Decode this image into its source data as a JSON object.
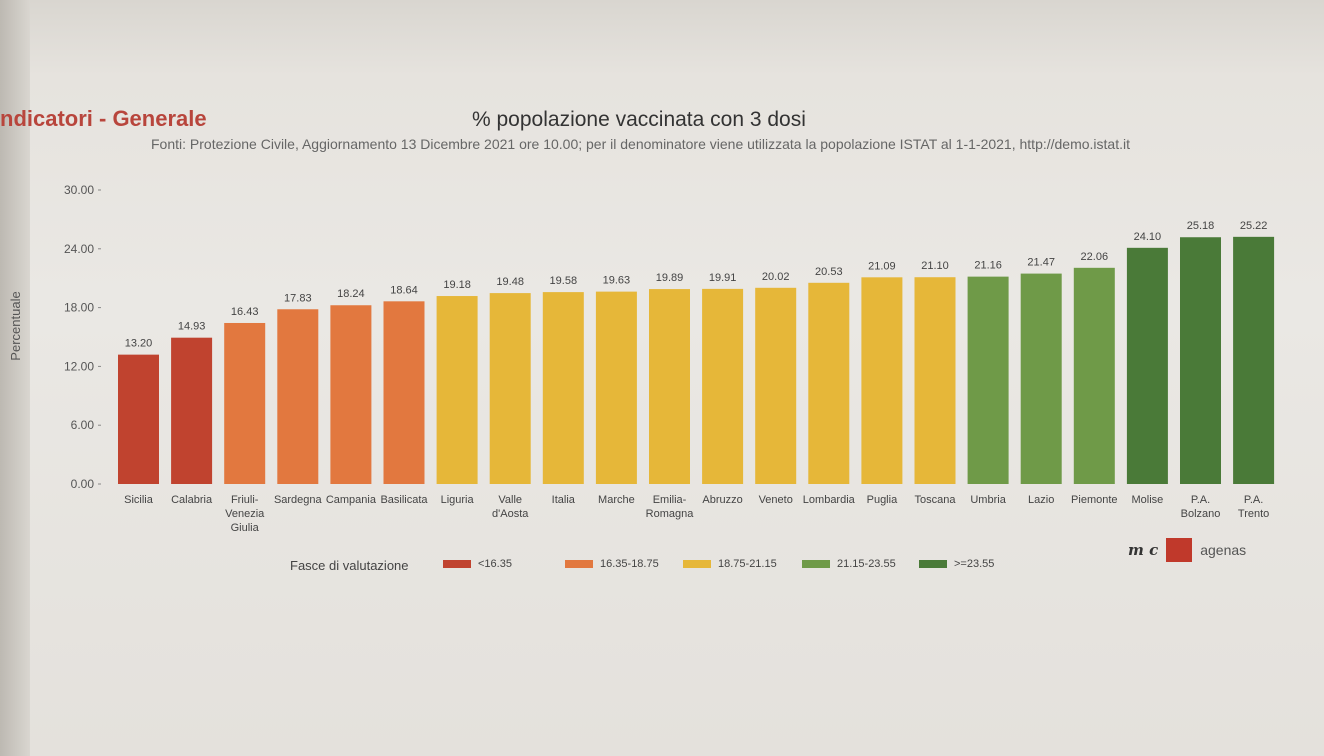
{
  "header": {
    "section_title": "ndicatori - Generale",
    "chart_title": "% popolazione vaccinata con 3 dosi",
    "source_note": "Fonti: Protezione Civile, Aggiornamento 13 Dicembre 2021 ore 10.00; per il denominatore viene utilizzata la popolazione ISTAT al 1-1-2021, http://demo.istat.it"
  },
  "chart_data": {
    "type": "bar",
    "ylabel": "Percentuale",
    "ylim": [
      0,
      30
    ],
    "yticks": [
      "0.00",
      "6.00",
      "12.00",
      "18.00",
      "24.00",
      "30.00"
    ],
    "grid": false,
    "categories": [
      "Sicilia",
      "Calabria",
      "Friuli-\nVenezia\nGiulia",
      "Sardegna",
      "Campania",
      "Basilicata",
      "Liguria",
      "Valle\nd'Aosta",
      "Italia",
      "Marche",
      "Emilia-\nRomagna",
      "Abruzzo",
      "Veneto",
      "Lombardia",
      "Puglia",
      "Toscana",
      "Umbria",
      "Lazio",
      "Piemonte",
      "Molise",
      "P.A.\nBolzano",
      "P.A.\nTrento"
    ],
    "values": [
      13.2,
      14.93,
      16.43,
      17.83,
      18.24,
      18.64,
      19.18,
      19.48,
      19.58,
      19.63,
      19.89,
      19.91,
      20.02,
      20.53,
      21.09,
      21.1,
      21.16,
      21.47,
      22.06,
      24.1,
      25.18,
      25.22
    ],
    "value_labels": [
      "13.20",
      "14.93",
      "16.43",
      "17.83",
      "18.24",
      "18.64",
      "19.18",
      "19.48",
      "19.58",
      "19.63",
      "19.89",
      "19.91",
      "20.02",
      "20.53",
      "21.09",
      "21.10",
      "21.16",
      "21.47",
      "22.06",
      "24.10",
      "25.18",
      "25.22"
    ],
    "bar_band": [
      0,
      0,
      1,
      1,
      1,
      1,
      2,
      2,
      2,
      2,
      2,
      2,
      2,
      2,
      2,
      2,
      3,
      3,
      3,
      4,
      4,
      4
    ],
    "legend": {
      "title": "Fasce di valutazione",
      "placement": "bottom",
      "items": [
        {
          "label": "<16.35",
          "color": "#c0432f"
        },
        {
          "label": "16.35-18.75",
          "color": "#e2783f"
        },
        {
          "label": "18.75-21.15",
          "color": "#e6b739"
        },
        {
          "label": "21.15-23.55",
          "color": "#6f9a48"
        },
        {
          "label": ">=23.55",
          "color": "#4a7a38"
        }
      ]
    }
  },
  "logos": {
    "mc": "m c",
    "agenas": "agenas"
  }
}
